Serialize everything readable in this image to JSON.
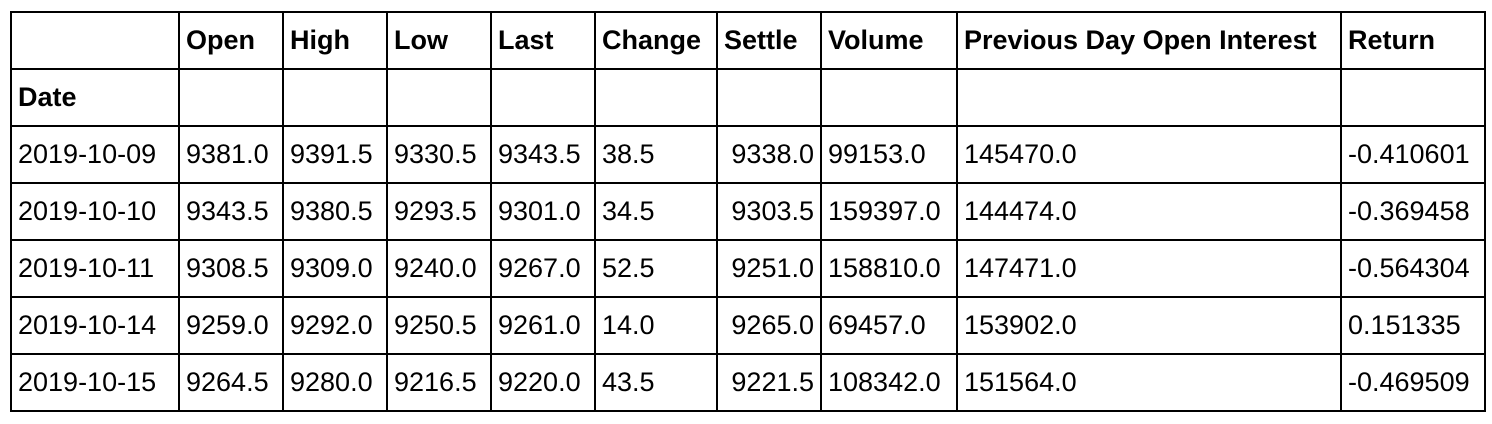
{
  "table": {
    "columns": [
      "Open",
      "High",
      "Low",
      "Last",
      "Change",
      "Settle",
      "Volume",
      "Previous Day Open Interest",
      "Return"
    ],
    "index_name": "Date",
    "rows": [
      {
        "date": "2019-10-09",
        "open": "9381.0",
        "high": "9391.5",
        "low": "9330.5",
        "last": "9343.5",
        "change": "38.5",
        "settle": "9338.0",
        "volume": "99153.0",
        "prev_oi": "145470.0",
        "return": "-0.410601"
      },
      {
        "date": "2019-10-10",
        "open": "9343.5",
        "high": "9380.5",
        "low": "9293.5",
        "last": "9301.0",
        "change": "34.5",
        "settle": "9303.5",
        "volume": "159397.0",
        "prev_oi": "144474.0",
        "return": "-0.369458"
      },
      {
        "date": "2019-10-11",
        "open": "9308.5",
        "high": "9309.0",
        "low": "9240.0",
        "last": "9267.0",
        "change": "52.5",
        "settle": "9251.0",
        "volume": "158810.0",
        "prev_oi": "147471.0",
        "return": "-0.564304"
      },
      {
        "date": "2019-10-14",
        "open": "9259.0",
        "high": "9292.0",
        "low": "9250.5",
        "last": "9261.0",
        "change": "14.0",
        "settle": "9265.0",
        "volume": "69457.0",
        "prev_oi": "153902.0",
        "return": "0.151335"
      },
      {
        "date": "2019-10-15",
        "open": "9264.5",
        "high": "9280.0",
        "low": "9216.5",
        "last": "9220.0",
        "change": "43.5",
        "settle": "9221.5",
        "volume": "108342.0",
        "prev_oi": "151564.0",
        "return": "-0.469509"
      }
    ]
  }
}
